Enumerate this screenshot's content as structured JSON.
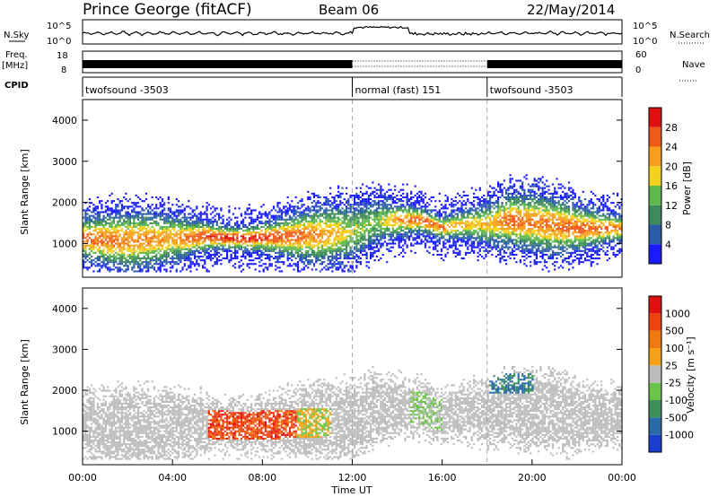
{
  "header": {
    "station": "Prince George (fitACF)",
    "beam": "Beam 06",
    "date": "22/May/2014"
  },
  "chart_data": [
    {
      "type": "line",
      "panel": "noise",
      "left_label": "N.Sky",
      "right_label": "N.Search",
      "left_ticks": [
        "10^5",
        "10^0"
      ],
      "right_ticks": [
        "10^5",
        "10^0"
      ]
    },
    {
      "type": "line",
      "panel": "frequency",
      "left_label_top": "Freq.",
      "left_label_bottom": "[MHz]",
      "left_ticks": [
        "18",
        "8"
      ],
      "right_label": "Nave",
      "right_ticks": [
        "60",
        "0"
      ],
      "segments": [
        {
          "start_hour": 0,
          "end_hour": 12,
          "style": "solid"
        },
        {
          "start_hour": 12,
          "end_hour": 18,
          "style": "dotted"
        },
        {
          "start_hour": 18,
          "end_hour": 24,
          "style": "solid"
        }
      ]
    },
    {
      "type": "table",
      "panel": "cpid",
      "label": "CPID",
      "segments": [
        {
          "name": "twofsound -3503",
          "start_hour": 0,
          "end_hour": 12
        },
        {
          "name": "normal (fast) 151",
          "start_hour": 12,
          "end_hour": 18
        },
        {
          "name": "twofsound -3503",
          "start_hour": 18,
          "end_hour": 24
        }
      ]
    },
    {
      "type": "heatmap",
      "panel": "power",
      "ylabel": "Slant Range [km]",
      "yticks": [
        1000,
        2000,
        3000,
        4000
      ],
      "ylim": [
        180,
        4500
      ],
      "colorbar_label": "Power [dB]",
      "colorbar_ticks": [
        "4",
        "8",
        "12",
        "16",
        "20",
        "24",
        "28"
      ],
      "colorbar_colors": [
        "#1a1aff",
        "#2a5caa",
        "#3d8a5a",
        "#5fb84c",
        "#f2d21e",
        "#f59f1c",
        "#ee5a1a",
        "#e01010"
      ],
      "band_hours": [
        0,
        2,
        4,
        5.5,
        7,
        9,
        11,
        12,
        13,
        14,
        15,
        16,
        17,
        18,
        19,
        20,
        22,
        24
      ],
      "band_center_km": [
        1100,
        1050,
        1100,
        1150,
        1100,
        1150,
        1200,
        1250,
        1500,
        1550,
        1550,
        1350,
        1450,
        1450,
        1550,
        1500,
        1350,
        1350
      ],
      "band_peak_db": [
        24,
        22,
        20,
        26,
        28,
        24,
        20,
        14,
        12,
        20,
        24,
        22,
        18,
        18,
        24,
        22,
        24,
        22
      ]
    },
    {
      "type": "heatmap",
      "panel": "velocity",
      "ylabel": "Slant Range [km]",
      "yticks": [
        1000,
        2000,
        3000,
        4000
      ],
      "ylim": [
        180,
        4500
      ],
      "colorbar_label": "Velocity [m s⁻¹]",
      "colorbar_ticks": [
        "1000",
        "500",
        "100",
        "25",
        "-25",
        "-100",
        "-500",
        "-1000"
      ],
      "colorbar_colors": [
        "#1a3fcf",
        "#2b6aa8",
        "#3f8f5a",
        "#6bc44a",
        "#bdbdbd",
        "#f5a21a",
        "#f07a12",
        "#ee4410",
        "#e01010"
      ],
      "xticks": [
        "00:00",
        "04:00",
        "08:00",
        "12:00",
        "16:00",
        "20:00",
        "00:00"
      ],
      "xlabel": "Time UT"
    }
  ]
}
